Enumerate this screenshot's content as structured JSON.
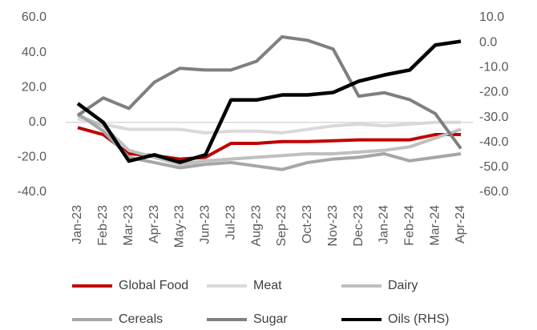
{
  "chart_data": {
    "type": "line",
    "categories": [
      "Jan-23",
      "Feb-23",
      "Mar-23",
      "Apr-23",
      "May-23",
      "Jun-23",
      "Jul-23",
      "Aug-23",
      "Sep-23",
      "Oct-23",
      "Nov-23",
      "Dec-23",
      "Jan-24",
      "Feb-24",
      "Mar-24",
      "Apr-24"
    ],
    "series": [
      {
        "name": "Global Food",
        "color": "#c00000",
        "values": [
          -3,
          -7,
          -18,
          -19,
          -21,
          -20,
          -12,
          -12,
          -11,
          -11,
          -10.5,
          -10,
          -10,
          -10,
          -7,
          -7
        ]
      },
      {
        "name": "Meat",
        "color": "#d9d9d9",
        "values": [
          2,
          -1,
          -4,
          -4,
          -4,
          -6,
          -5,
          -5,
          -6,
          -4,
          -2,
          -1,
          -2,
          -1,
          0,
          0
        ]
      },
      {
        "name": "Dairy",
        "color": "#bfbfbf",
        "values": [
          4,
          -2,
          -16,
          -20,
          -24,
          -22,
          -21,
          -20,
          -19,
          -18,
          -18,
          -17,
          -16,
          -14,
          -9,
          -4
        ]
      },
      {
        "name": "Cereals",
        "color": "#a6a6a6",
        "values": [
          5,
          -5,
          -20,
          -23,
          -26,
          -24,
          -23,
          -25,
          -27,
          -23,
          -21,
          -20,
          -18,
          -22,
          -20,
          -18
        ]
      },
      {
        "name": "Sugar",
        "color": "#7f7f7f",
        "values": [
          4,
          14,
          8,
          23,
          31,
          30,
          30,
          35,
          49,
          47,
          42,
          15,
          17,
          13,
          5,
          -15
        ]
      },
      {
        "name": "Oils (RHS)",
        "color": "#000000",
        "axis": "y2",
        "values": [
          -24.4,
          -32,
          -47.5,
          -45,
          -48,
          -45,
          -23,
          -23,
          -21,
          -21,
          -20,
          -15.5,
          -13,
          -11,
          -1,
          0.5
        ]
      }
    ],
    "ylim": [
      -40,
      60
    ],
    "yticks": [
      {
        "value": 60,
        "label": "60.0"
      },
      {
        "value": 40,
        "label": "40.0"
      },
      {
        "value": 20,
        "label": "20.0"
      },
      {
        "value": 0,
        "label": "0.0"
      },
      {
        "value": -20,
        "label": "-20.0"
      },
      {
        "value": -40,
        "label": "-40.0"
      }
    ],
    "y2lim": [
      -60,
      10
    ],
    "y2ticks": [
      {
        "value": 10,
        "label": "10.0"
      },
      {
        "value": 0,
        "label": "0.0"
      },
      {
        "value": -10,
        "label": "-10.0"
      },
      {
        "value": -20,
        "label": "-20.0"
      },
      {
        "value": -30,
        "label": "-30.0"
      },
      {
        "value": -40,
        "label": "-40.0"
      },
      {
        "value": -50,
        "label": "-50.0"
      },
      {
        "value": -60,
        "label": "-60.0"
      }
    ],
    "grid": false,
    "legend": "bottom"
  }
}
